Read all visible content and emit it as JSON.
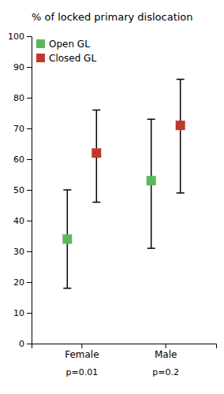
{
  "chart_data": {
    "type": "errorbar",
    "title": "% of locked primary dislocation",
    "categories": [
      "Female",
      "Male"
    ],
    "series": [
      {
        "name": "Open GL",
        "color": "#5cb85c",
        "values": [
          34,
          53
        ],
        "ci_low": [
          18,
          31
        ],
        "ci_high": [
          50,
          73
        ]
      },
      {
        "name": "Closed GL",
        "color": "#c0392b",
        "values": [
          62,
          71
        ],
        "ci_low": [
          46,
          49
        ],
        "ci_high": [
          76,
          86
        ]
      }
    ],
    "annotations": [
      "p=0.01",
      "p=0.2"
    ],
    "ylim": [
      0,
      100
    ],
    "yticks": [
      0,
      10,
      20,
      30,
      40,
      50,
      60,
      70,
      80,
      90,
      100
    ],
    "marker": "square",
    "legend": "upper-left",
    "grid": false
  }
}
